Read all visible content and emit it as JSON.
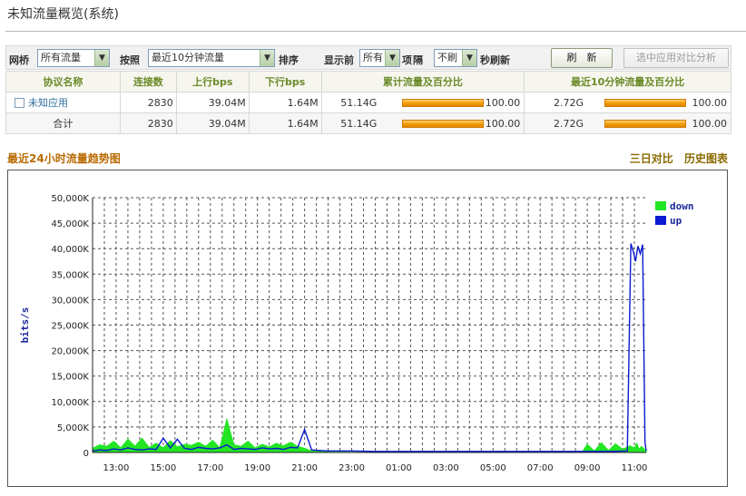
{
  "page": {
    "title": "未知流量概览(系统)"
  },
  "toolbar": {
    "bridge_label": "网桥",
    "bridge_value": "所有流量",
    "sort_by_label": "按照",
    "sort_by_value": "最近10分钟流量",
    "sort_label": "排序",
    "show_top_label": "显示前",
    "show_top_value": "所有",
    "items_label": "项",
    "interval_label": "隔",
    "refresh_label_prefix": "流 量",
    "interval_value": "不刷",
    "seconds_refresh_label": "秒刷新",
    "refresh_button": "刷　新",
    "compare_button": "选中应用对比分析"
  },
  "table": {
    "headers": [
      "协议名称",
      "连接数",
      "上行bps",
      "下行bps",
      "累计流量及百分比",
      "最近10分钟流量及百分比"
    ],
    "rows": [
      {
        "name": "未知应用",
        "connections": "2830",
        "up": "39.04M",
        "down": "1.64M",
        "total": "51.14G",
        "total_pct": "100.00",
        "recent": "2.72G",
        "recent_pct": "100.00",
        "total_fill": 1.0,
        "recent_fill": 1.0
      },
      {
        "name": "合计",
        "connections": "2830",
        "up": "39.04M",
        "down": "1.64M",
        "total": "51.14G",
        "total_pct": "100.00",
        "recent": "2.72G",
        "recent_pct": "100.00",
        "total_fill": 1.0,
        "recent_fill": 1.0
      }
    ]
  },
  "section": {
    "title": "最近24小时流量趋势图",
    "link_compare": "三日对比",
    "link_history": "历史图表"
  },
  "chart_data": {
    "type": "area",
    "ylabel": "bits/s",
    "ylim": [
      0,
      50000
    ],
    "y_ticks": [
      "0",
      "5,000K",
      "10,000K",
      "15,000K",
      "20,000K",
      "25,000K",
      "30,000K",
      "35,000K",
      "40,000K",
      "45,000K",
      "50,000K"
    ],
    "y_tick_values": [
      0,
      5000,
      10000,
      15000,
      20000,
      25000,
      30000,
      35000,
      40000,
      45000,
      50000
    ],
    "x_ticks": [
      "13:00",
      "15:00",
      "17:00",
      "19:00",
      "21:00",
      "23:00",
      "01:00",
      "03:00",
      "05:00",
      "07:00",
      "09:00",
      "11:00"
    ],
    "x_tick_hours": [
      1,
      3,
      5,
      7,
      9,
      11,
      13,
      15,
      17,
      19,
      21,
      23
    ],
    "xlim_hours": [
      0,
      23.5
    ],
    "grid": true,
    "legend_position": "top-right",
    "series": [
      {
        "name": "down",
        "color": "#22e622",
        "x": [
          0,
          0.3,
          0.6,
          0.9,
          1.2,
          1.5,
          1.8,
          2.1,
          2.4,
          2.7,
          3.0,
          3.3,
          3.6,
          3.9,
          4.2,
          4.5,
          4.8,
          5.1,
          5.4,
          5.7,
          6.0,
          6.3,
          6.6,
          6.9,
          7.2,
          7.5,
          7.8,
          8.1,
          8.4,
          8.7,
          9.0,
          9.3,
          9.6,
          10.0,
          11.0,
          12.0,
          13.0,
          14.0,
          15.0,
          16.0,
          17.0,
          18.0,
          19.0,
          20.0,
          20.8,
          21.0,
          21.3,
          21.6,
          21.9,
          22.2,
          22.5,
          22.8,
          23.0,
          23.1,
          23.2,
          23.3,
          23.5
        ],
        "values": [
          800,
          1500,
          1200,
          2200,
          900,
          2600,
          1200,
          2800,
          1000,
          1800,
          900,
          2300,
          1100,
          1600,
          1400,
          2000,
          1200,
          2400,
          900,
          6500,
          1500,
          1200,
          2200,
          900,
          1600,
          1100,
          1800,
          1300,
          2000,
          1200,
          800,
          300,
          200,
          100,
          50,
          50,
          50,
          50,
          50,
          50,
          50,
          50,
          50,
          50,
          200,
          1600,
          300,
          1900,
          400,
          1700,
          600,
          1300,
          900,
          1800,
          600,
          1200,
          300
        ]
      },
      {
        "name": "up",
        "color": "#0a1ad0",
        "x": [
          0,
          0.3,
          0.6,
          0.9,
          1.2,
          1.5,
          1.8,
          2.1,
          2.4,
          2.7,
          3.0,
          3.3,
          3.6,
          3.9,
          4.2,
          4.5,
          4.8,
          5.1,
          5.4,
          5.7,
          6.0,
          6.3,
          6.6,
          6.9,
          7.2,
          7.5,
          7.8,
          8.1,
          8.4,
          8.7,
          9.0,
          9.3,
          9.6,
          10.0,
          11.0,
          12.0,
          13.0,
          14.0,
          15.0,
          16.0,
          17.0,
          18.0,
          19.0,
          20.0,
          21.0,
          22.0,
          22.7,
          22.85,
          22.95,
          23.05,
          23.15,
          23.25,
          23.35,
          23.45,
          23.5
        ],
        "values": [
          300,
          500,
          400,
          700,
          500,
          900,
          600,
          500,
          700,
          600,
          2800,
          900,
          2600,
          800,
          600,
          1000,
          800,
          700,
          900,
          1500,
          600,
          800,
          700,
          600,
          900,
          700,
          800,
          600,
          1000,
          900,
          4500,
          500,
          400,
          300,
          300,
          200,
          200,
          200,
          200,
          200,
          200,
          200,
          200,
          200,
          200,
          200,
          300,
          41000,
          39500,
          37500,
          40500,
          39000,
          40800,
          2000,
          300
        ]
      }
    ]
  }
}
